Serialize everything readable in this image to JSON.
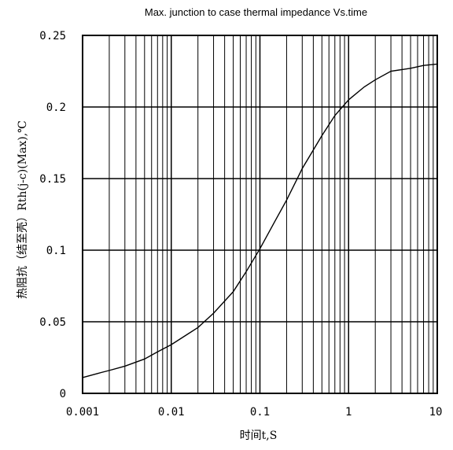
{
  "chart_data": {
    "type": "line",
    "title": "Max. junction to case thermal impedance Vs.time",
    "xlabel": "时间t,S",
    "ylabel": "热阻抗（结至壳）Rth(j-c)(Max),℃",
    "x_scale": "log",
    "xlim": [
      0.001,
      10
    ],
    "ylim": [
      0,
      0.25
    ],
    "grid": true,
    "x_tick_labels": [
      "0.001",
      "0.01",
      "0.1",
      "1",
      "10"
    ],
    "y_tick_labels": [
      "0",
      "0.05",
      "0.1",
      "0.15",
      "0.2",
      "0.25"
    ],
    "series": [
      {
        "x": [
          0.001,
          0.0015,
          0.002,
          0.003,
          0.005,
          0.007,
          0.01,
          0.015,
          0.02,
          0.03,
          0.05,
          0.07,
          0.1,
          0.15,
          0.2,
          0.3,
          0.5,
          0.7,
          1,
          1.5,
          2,
          3,
          5,
          7,
          10
        ],
        "y": [
          0.011,
          0.014,
          0.016,
          0.019,
          0.024,
          0.029,
          0.034,
          0.041,
          0.046,
          0.056,
          0.071,
          0.085,
          0.101,
          0.121,
          0.135,
          0.157,
          0.18,
          0.194,
          0.205,
          0.214,
          0.219,
          0.225,
          0.227,
          0.229,
          0.23
        ],
        "color": "#000000"
      }
    ]
  }
}
